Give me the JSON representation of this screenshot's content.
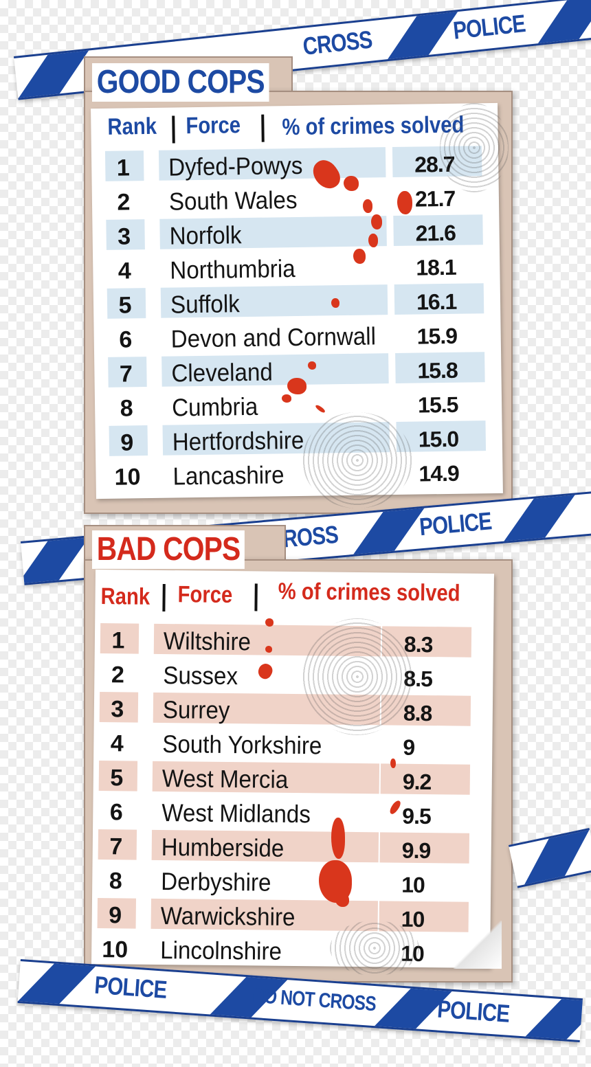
{
  "colors": {
    "good_accent": "#1d4aa3",
    "bad_accent": "#d42a1c",
    "good_band": "#d6e6f1",
    "bad_band": "#f0d3c8",
    "board": "#d9c4b5",
    "tape_blue": "#1d4aa3"
  },
  "tape": {
    "police": "POLICE",
    "do_not_cross": "DO NOT CROSS",
    "cross": "CROSS",
    "do_not_cross_partial": "NOT CROSS"
  },
  "icons": [
    "fingerprint-icon",
    "blood-splatter-icon",
    "police-tape-icon"
  ],
  "chart_data": [
    {
      "type": "table",
      "title": "GOOD COPS",
      "columns": [
        "Rank",
        "Force",
        "% of crimes solved"
      ],
      "rows": [
        {
          "rank": "1",
          "force": "Dyfed-Powys",
          "value": "28.7"
        },
        {
          "rank": "2",
          "force": "South Wales",
          "value": "21.7"
        },
        {
          "rank": "3",
          "force": "Norfolk",
          "value": "21.6"
        },
        {
          "rank": "4",
          "force": "Northumbria",
          "value": "18.1"
        },
        {
          "rank": "5",
          "force": "Suffolk",
          "value": "16.1"
        },
        {
          "rank": "6",
          "force": "Devon and Cornwall",
          "value": "15.9"
        },
        {
          "rank": "7",
          "force": "Cleveland",
          "value": "15.8"
        },
        {
          "rank": "8",
          "force": "Cumbria",
          "value": "15.5"
        },
        {
          "rank": "9",
          "force": "Hertfordshire",
          "value": "15.0"
        },
        {
          "rank": "10",
          "force": "Lancashire",
          "value": "14.9"
        }
      ]
    },
    {
      "type": "table",
      "title": "BAD COPS",
      "columns": [
        "Rank",
        "Force",
        "% of crimes solved"
      ],
      "rows": [
        {
          "rank": "1",
          "force": "Wiltshire",
          "value": "8.3"
        },
        {
          "rank": "2",
          "force": "Sussex",
          "value": "8.5"
        },
        {
          "rank": "3",
          "force": "Surrey",
          "value": "8.8"
        },
        {
          "rank": "4",
          "force": "South Yorkshire",
          "value": "9"
        },
        {
          "rank": "5",
          "force": "West Mercia",
          "value": "9.2"
        },
        {
          "rank": "6",
          "force": "West Midlands",
          "value": "9.5"
        },
        {
          "rank": "7",
          "force": "Humberside",
          "value": "9.9"
        },
        {
          "rank": "8",
          "force": "Derbyshire",
          "value": "10"
        },
        {
          "rank": "9",
          "force": "Warwickshire",
          "value": "10"
        },
        {
          "rank": "10",
          "force": "Lincolnshire",
          "value": "10"
        }
      ]
    }
  ]
}
